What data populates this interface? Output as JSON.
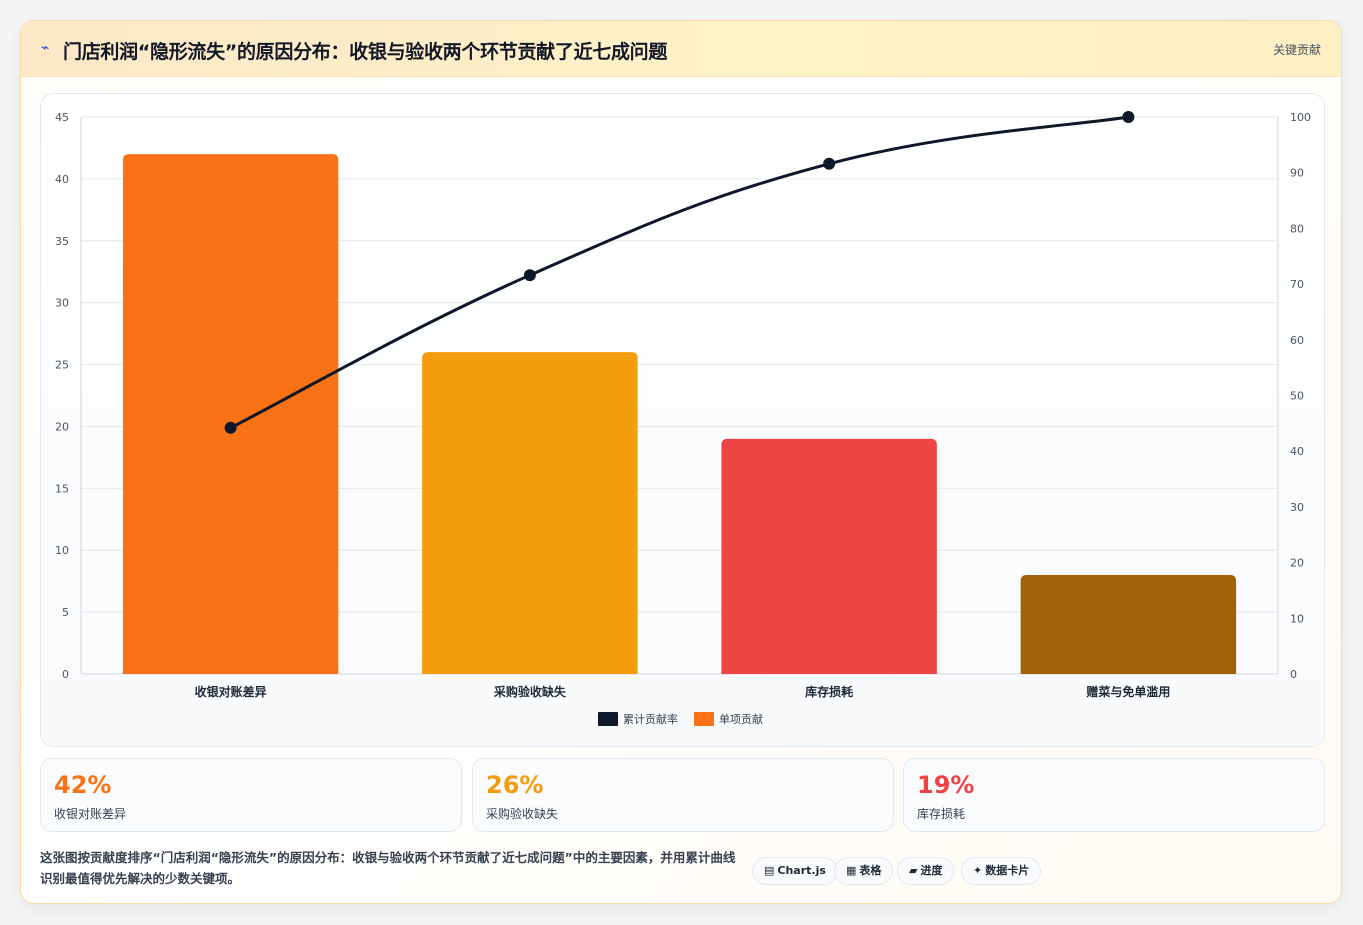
{
  "header": {
    "icon": "lightning-icon",
    "title": "门店利润“隐形流失”的原因分布：收银与验收两个环节贡献了近七成问题",
    "tag": "关键贡献"
  },
  "chart_data": {
    "type": "bar",
    "categories": [
      "收银对账差异",
      "采购验收缺失",
      "库存损耗",
      "赠菜与免单滥用"
    ],
    "series": [
      {
        "name": "单项贡献",
        "kind": "bar",
        "axis": "left",
        "values": [
          42,
          26,
          19,
          8
        ],
        "colors": [
          "#f97316",
          "#f29c0e",
          "#ef4444",
          "#a16207"
        ]
      },
      {
        "name": "累计贡献率",
        "kind": "line",
        "axis": "right",
        "values": [
          44.2,
          71.6,
          91.6,
          100
        ],
        "color": "#0f172a"
      }
    ],
    "ylim_left": [
      0,
      45
    ],
    "yticks_left": [
      0,
      5,
      10,
      15,
      20,
      25,
      30,
      35,
      40,
      45
    ],
    "ylim_right": [
      0,
      100
    ],
    "yticks_right": [
      0,
      10,
      20,
      30,
      40,
      50,
      60,
      70,
      80,
      90,
      100
    ],
    "legend": [
      {
        "label": "累计贡献率",
        "color": "#0f172a"
      },
      {
        "label": "单项贡献",
        "color": "#f97316"
      }
    ],
    "legend_position": "bottom",
    "grid": true
  },
  "kpis": [
    {
      "value": "42%",
      "label": "收银对账差异",
      "color": "#f97316"
    },
    {
      "value": "26%",
      "label": "采购验收缺失",
      "color": "#f29c0e"
    },
    {
      "value": "19%",
      "label": "库存损耗",
      "color": "#ef4444"
    }
  ],
  "footer": {
    "description": "这张图按贡献度排序“门店利润“隐形流失”的原因分布：收银与验收两个环节贡献了近七成问题”中的主要因素，并用累计曲线识别最值得优先解决的少数关键项。",
    "pills": [
      {
        "icon": "▤",
        "label": "Chart.js"
      },
      {
        "icon": "▦",
        "label": "表格"
      },
      {
        "icon": "▰",
        "label": "进度"
      },
      {
        "icon": "✦",
        "label": "数据卡片"
      }
    ]
  }
}
